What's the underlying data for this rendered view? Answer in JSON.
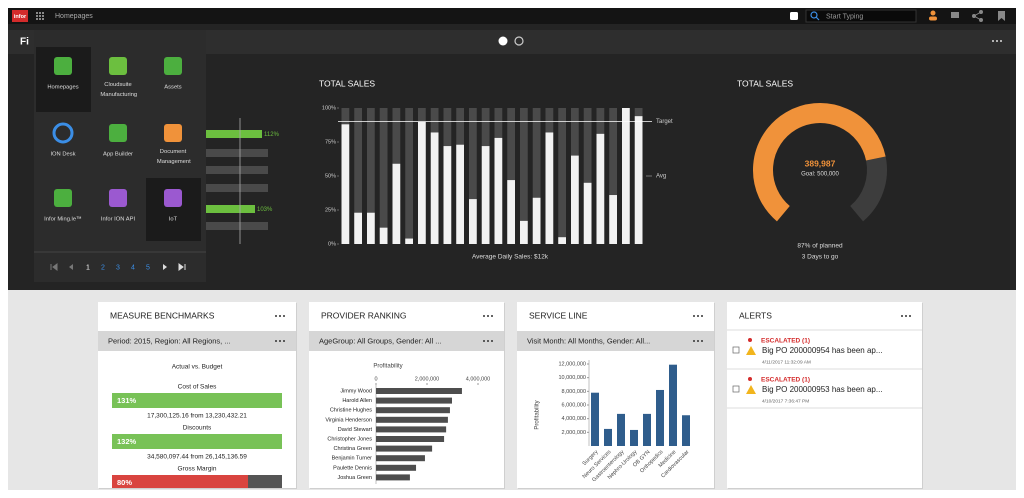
{
  "topbar": {
    "logo": "infor",
    "breadcrumb": "Homepages",
    "search_placeholder": "Start Typing"
  },
  "page_title": "Fi",
  "app_menu": {
    "apps": [
      "Homepages",
      "Cloudsuite Manufacturing",
      "Assets",
      "ION Desk",
      "App Builder",
      "Document Management",
      "Infor Ming.le™",
      "Infor ION API",
      "IoT"
    ],
    "pages": [
      1,
      2,
      3,
      4,
      5
    ]
  },
  "left_chart": {
    "labels": [
      "112%",
      "103%"
    ]
  },
  "total_sales_bars": {
    "title": "TOTAL SALES",
    "ylim": [
      0,
      100
    ],
    "yticks": [
      {
        "value": 0,
        "label": "0%"
      },
      {
        "value": 25,
        "label": "25%"
      },
      {
        "value": 50,
        "label": "50%"
      },
      {
        "value": 75,
        "label": "75%"
      },
      {
        "value": 100,
        "label": "100%"
      }
    ],
    "values": [
      88,
      23,
      23,
      12,
      59,
      4,
      90,
      82,
      72,
      73,
      33,
      72,
      78,
      47,
      17,
      34,
      82,
      5,
      65,
      45,
      81,
      36,
      100,
      94
    ],
    "target": {
      "label": "Target",
      "value": 90
    },
    "avg": {
      "label": "Avg",
      "value": 50
    },
    "caption": "Average Daily Sales: $12k"
  },
  "total_sales_gauge": {
    "title": "TOTAL SALES",
    "value": 389987,
    "value_label": "389,987",
    "goal": 500000,
    "goal_label": "Goal: 500,000",
    "note": "87% of planned",
    "days": "3 Days to go"
  },
  "measure_benchmarks": {
    "title": "MEASURE BENCHMARKS",
    "filter": "Period: 2015, Region: All Regions, ...",
    "subtitle": "Actual vs. Budget",
    "items": [
      {
        "name": "Cost of Sales",
        "value": 131,
        "value_label": "131%",
        "detail": "17,300,125.16 from 13,230,432.21"
      },
      {
        "name": "Discounts",
        "value": 132,
        "value_label": "132%",
        "detail": "34,580,097.44 from 26,145,136.59"
      },
      {
        "name": "Gross Margin",
        "value": 80,
        "value_label": "80%"
      }
    ]
  },
  "provider_ranking": {
    "title": "PROVIDER RANKING",
    "filter": "AgeGroup: All Groups, Gender: All ...",
    "axis_label": "Profitability",
    "xlim": [
      0,
      4000000
    ],
    "xticks": [
      0,
      {
        "value": 2000000,
        "label": "2,000,000"
      },
      {
        "value": 4000000,
        "label": "4,000,000"
      }
    ],
    "categories": [
      "Jimmy Wood",
      "Harold Allen",
      "Christine Hughes",
      "Virginia Henderson",
      "David Stewart",
      "Christopher Jones",
      "Christina Green",
      "Benjamin Turner",
      "Paulette Dennis",
      "Joshua Green"
    ],
    "values": [
      3370000,
      2980000,
      2900000,
      2820000,
      2750000,
      2670000,
      2200000,
      1920000,
      1570000,
      1330000
    ]
  },
  "service_line": {
    "title": "SERVICE LINE",
    "filter": "Visit Month: All Months, Gender: All...",
    "axis_label": "Profitability",
    "ylim": [
      0,
      12000000
    ],
    "yticks": [
      {
        "value": 2000000,
        "label": "2,000,000"
      },
      {
        "value": 4000000,
        "label": "4,000,000"
      },
      {
        "value": 6000000,
        "label": "6,000,000"
      },
      {
        "value": 8000000,
        "label": "8,000,000"
      },
      {
        "value": 10000000,
        "label": "10,000,000"
      },
      {
        "value": 12000000,
        "label": "12,000,000"
      }
    ],
    "categories": [
      "Surgery",
      "Neuro Services",
      "Gastroenterology",
      "Nephro-Urology",
      "OB GYN",
      "Orthopedics",
      "Medicine",
      "Cardiovascular"
    ],
    "values": [
      7800000,
      2500000,
      4700000,
      2350000,
      4700000,
      8200000,
      11900000,
      4500000
    ]
  },
  "alerts": {
    "title": "ALERTS",
    "items": [
      {
        "status": "ESCALATED (1)",
        "message": "Big PO 200000954 has been ap...",
        "date": "4/11/2017 11:32:09 AM"
      },
      {
        "status": "ESCALATED (1)",
        "message": "Big PO 200000953 has been ap...",
        "date": "4/10/2017 7:36:47 PM"
      }
    ]
  }
}
